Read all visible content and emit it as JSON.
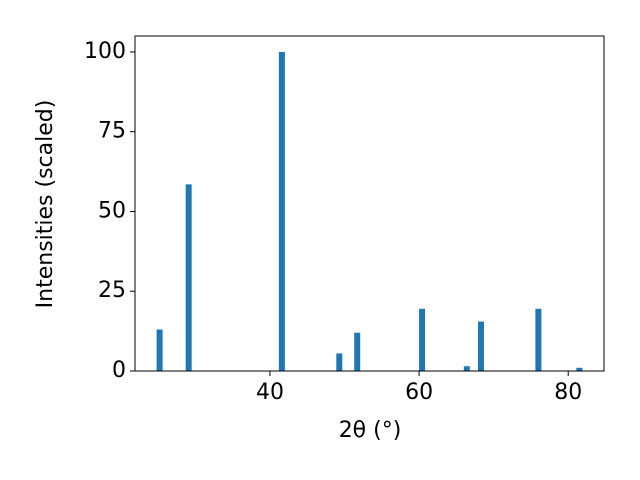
{
  "chart_data": {
    "type": "bar",
    "xlabel": "2θ (°)",
    "ylabel": "Intensities (scaled)",
    "x": [
      25.2,
      29.1,
      41.6,
      49.3,
      51.7,
      60.4,
      66.4,
      68.3,
      76.0,
      81.5
    ],
    "values": [
      13,
      58.5,
      100,
      5.5,
      12,
      19.5,
      1.5,
      15.5,
      19.5,
      1
    ],
    "color": "#1f77b4",
    "xlim": [
      21.9,
      84.8
    ],
    "xticks": [
      40,
      60,
      80
    ],
    "ylim": [
      0,
      105
    ],
    "yticks": [
      0,
      25,
      50,
      75,
      100
    ],
    "grid": false
  }
}
